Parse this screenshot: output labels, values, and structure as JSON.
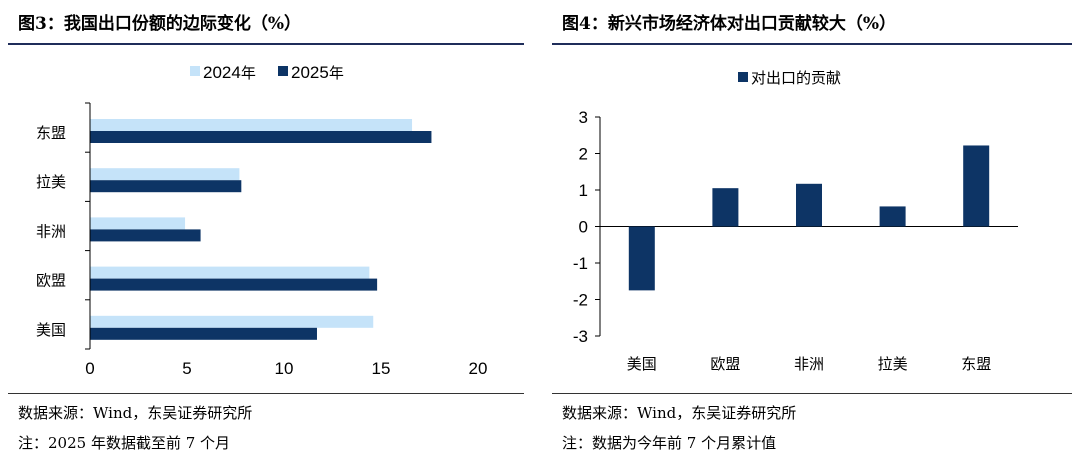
{
  "left": {
    "title": "图3：我国出口份额的边际变化（%）",
    "source": "数据来源：Wind，东吴证券研究所",
    "note": "注：2025 年数据截至前 7 个月",
    "chart_data": {
      "type": "bar",
      "orientation": "horizontal",
      "categories": [
        "东盟",
        "拉美",
        "非洲",
        "欧盟",
        "美国"
      ],
      "series": [
        {
          "name": "2024年",
          "values": [
            16.6,
            7.7,
            4.9,
            14.4,
            14.6
          ],
          "color": "#c5e3f9"
        },
        {
          "name": "2025年",
          "values": [
            17.6,
            7.8,
            5.7,
            14.8,
            11.7
          ],
          "color": "#0d3465"
        }
      ],
      "xlim": [
        0,
        20
      ],
      "xticks": [
        "0",
        "5",
        "10",
        "15",
        "20"
      ],
      "legend_position": "top",
      "grid": false
    }
  },
  "right": {
    "title": "图4：新兴市场经济体对出口贡献较大（%）",
    "source": "数据来源：Wind，东吴证券研究所",
    "note": "注：数据为今年前 7 个月累计值",
    "chart_data": {
      "type": "bar",
      "categories": [
        "美国",
        "欧盟",
        "非洲",
        "拉美",
        "东盟"
      ],
      "series": [
        {
          "name": "对出口的贡献",
          "values": [
            -1.75,
            1.05,
            1.17,
            0.55,
            2.22
          ],
          "color": "#0d3465"
        }
      ],
      "ylim": [
        -3,
        3
      ],
      "yticks": [
        "3",
        "2",
        "1",
        "0",
        "-1",
        "-2",
        "-3"
      ],
      "legend_position": "top",
      "grid": false
    }
  }
}
